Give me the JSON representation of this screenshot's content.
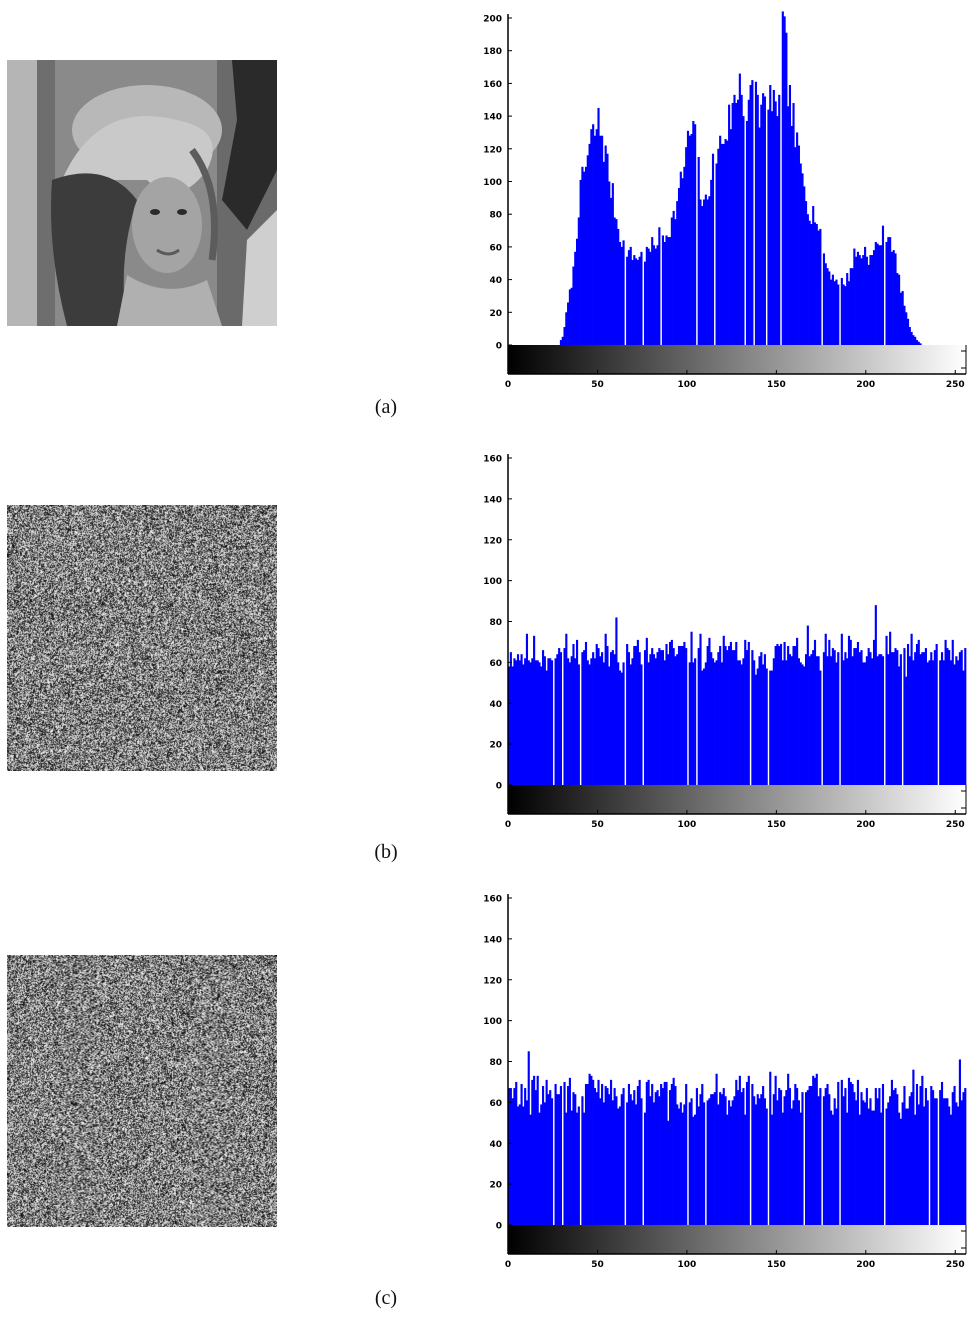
{
  "panels": [
    {
      "label": "(a)",
      "image": "lena-grayscale-image"
    },
    {
      "label": "(b)",
      "image": "encrypted-noise-image"
    },
    {
      "label": "(c)",
      "image": "encrypted-noise-image"
    }
  ],
  "colors": {
    "bar": "#0000ff",
    "axis": "#000000",
    "colorbar_start": "#000000",
    "colorbar_end": "#ffffff"
  },
  "chart_data": [
    {
      "type": "bar",
      "title": "",
      "xlabel": "",
      "ylabel": "",
      "xlim": [
        0,
        255
      ],
      "ylim": [
        0,
        200
      ],
      "xticks": [
        0,
        50,
        100,
        150,
        200,
        250
      ],
      "xtick_labels": [
        "0",
        "50",
        "100",
        "150",
        "200",
        "250"
      ],
      "yticks": [
        0,
        20,
        40,
        60,
        80,
        100,
        120,
        140,
        160,
        180,
        200
      ],
      "ytick_labels": [
        "0",
        "20",
        "40",
        "60",
        "80",
        "100",
        "120",
        "140",
        "160",
        "180",
        "200"
      ],
      "grid": false,
      "colorbar": "grayscale",
      "profile": [
        [
          0,
          0
        ],
        [
          28,
          0
        ],
        [
          30,
          5
        ],
        [
          33,
          25
        ],
        [
          36,
          45
        ],
        [
          39,
          85
        ],
        [
          41,
          100
        ],
        [
          43,
          110
        ],
        [
          46,
          125
        ],
        [
          48,
          130
        ],
        [
          50,
          135
        ],
        [
          52,
          128
        ],
        [
          55,
          110
        ],
        [
          58,
          90
        ],
        [
          61,
          72
        ],
        [
          64,
          62
        ],
        [
          68,
          55
        ],
        [
          72,
          54
        ],
        [
          76,
          55
        ],
        [
          80,
          60
        ],
        [
          84,
          66
        ],
        [
          88,
          68
        ],
        [
          92,
          78
        ],
        [
          95,
          92
        ],
        [
          97,
          105
        ],
        [
          99,
          118
        ],
        [
          101,
          128
        ],
        [
          103,
          130
        ],
        [
          105,
          118
        ],
        [
          107,
          95
        ],
        [
          109,
          82
        ],
        [
          112,
          100
        ],
        [
          115,
          115
        ],
        [
          118,
          122
        ],
        [
          121,
          130
        ],
        [
          124,
          140
        ],
        [
          127,
          150
        ],
        [
          129,
          165
        ],
        [
          131,
          152
        ],
        [
          133,
          138
        ],
        [
          135,
          148
        ],
        [
          137,
          160
        ],
        [
          139,
          150
        ],
        [
          141,
          140
        ],
        [
          143,
          150
        ],
        [
          145,
          158
        ],
        [
          147,
          145
        ],
        [
          149,
          138
        ],
        [
          151,
          160
        ],
        [
          153,
          192
        ],
        [
          155,
          175
        ],
        [
          157,
          148
        ],
        [
          159,
          135
        ],
        [
          161,
          120
        ],
        [
          163,
          108
        ],
        [
          165,
          100
        ],
        [
          167,
          88
        ],
        [
          169,
          80
        ],
        [
          171,
          82
        ],
        [
          173,
          70
        ],
        [
          175,
          60
        ],
        [
          177,
          50
        ],
        [
          179,
          45
        ],
        [
          181,
          42
        ],
        [
          184,
          40
        ],
        [
          187,
          38
        ],
        [
          190,
          42
        ],
        [
          193,
          55
        ],
        [
          196,
          55
        ],
        [
          199,
          58
        ],
        [
          202,
          52
        ],
        [
          205,
          60
        ],
        [
          208,
          65
        ],
        [
          211,
          70
        ],
        [
          213,
          66
        ],
        [
          215,
          58
        ],
        [
          217,
          45
        ],
        [
          219,
          35
        ],
        [
          221,
          25
        ],
        [
          223,
          15
        ],
        [
          225,
          8
        ],
        [
          228,
          3
        ],
        [
          231,
          0
        ],
        [
          255,
          0
        ]
      ],
      "gaps": [
        65,
        75,
        85,
        105,
        115,
        132,
        137,
        144,
        152,
        175,
        185,
        210
      ]
    },
    {
      "type": "bar",
      "title": "",
      "xlabel": "",
      "ylabel": "",
      "xlim": [
        0,
        255
      ],
      "ylim": [
        0,
        160
      ],
      "xticks": [
        0,
        50,
        100,
        150,
        200,
        250
      ],
      "xtick_labels": [
        "0",
        "50",
        "100",
        "150",
        "200",
        "250"
      ],
      "yticks": [
        0,
        20,
        40,
        60,
        80,
        100,
        120,
        140,
        160
      ],
      "ytick_labels": [
        "0",
        "20",
        "40",
        "60",
        "80",
        "100",
        "120",
        "140",
        "160"
      ],
      "grid": false,
      "colorbar": "grayscale",
      "mean": 64,
      "spread": 10,
      "seed": 11,
      "peaks": [
        [
          30,
          82
        ],
        [
          60,
          82
        ],
        [
          145,
          83
        ],
        [
          205,
          88
        ],
        [
          240,
          84
        ]
      ],
      "gaps": [
        25,
        30,
        40,
        65,
        75,
        100,
        105,
        135,
        145,
        175,
        185,
        210,
        220,
        240
      ]
    },
    {
      "type": "bar",
      "title": "",
      "xlabel": "",
      "ylabel": "",
      "xlim": [
        0,
        255
      ],
      "ylim": [
        0,
        160
      ],
      "xticks": [
        0,
        50,
        100,
        150,
        200,
        250
      ],
      "xtick_labels": [
        "0",
        "50",
        "100",
        "150",
        "200",
        "250"
      ],
      "yticks": [
        0,
        20,
        40,
        60,
        80,
        100,
        120,
        140,
        160
      ],
      "ytick_labels": [
        "0",
        "20",
        "40",
        "60",
        "80",
        "100",
        "120",
        "140",
        "160"
      ],
      "grid": false,
      "colorbar": "grayscale",
      "mean": 64,
      "spread": 10,
      "seed": 29,
      "peaks": [
        [
          11,
          85
        ],
        [
          165,
          81
        ],
        [
          210,
          81
        ],
        [
          252,
          81
        ]
      ],
      "gaps": [
        25,
        30,
        40,
        65,
        75,
        100,
        110,
        135,
        145,
        165,
        175,
        185,
        210,
        235,
        240
      ]
    }
  ]
}
